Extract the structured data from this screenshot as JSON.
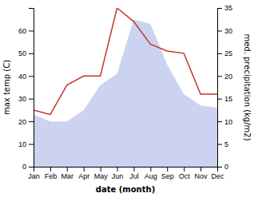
{
  "chart_data": {
    "type": "line",
    "x_label": "date (month)",
    "y_label": "max temp (C)",
    "y2_label": "med. precipitation (kg/m2)",
    "categories": [
      "Jan",
      "Feb",
      "Mar",
      "Apr",
      "May",
      "Jun",
      "Jul",
      "Aug",
      "Sep",
      "Oct",
      "Nov",
      "Dec"
    ],
    "series": [
      {
        "type": "area",
        "color": "#c5cef0",
        "values": [
          23,
          20,
          20,
          25,
          36,
          41,
          65,
          63,
          45,
          32,
          27,
          26
        ]
      },
      {
        "type": "line",
        "color": "#c0392b",
        "axis": "y2",
        "values": [
          12.5,
          11.5,
          18,
          20,
          20,
          35,
          32,
          27,
          25.5,
          25,
          16,
          16
        ]
      }
    ],
    "ylim": [
      0,
      70
    ],
    "yticks": [
      0,
      10,
      20,
      30,
      40,
      50,
      60
    ],
    "y2lim": [
      0,
      35
    ],
    "y2ticks": [
      0,
      5,
      10,
      15,
      20,
      25,
      30,
      35
    ]
  }
}
